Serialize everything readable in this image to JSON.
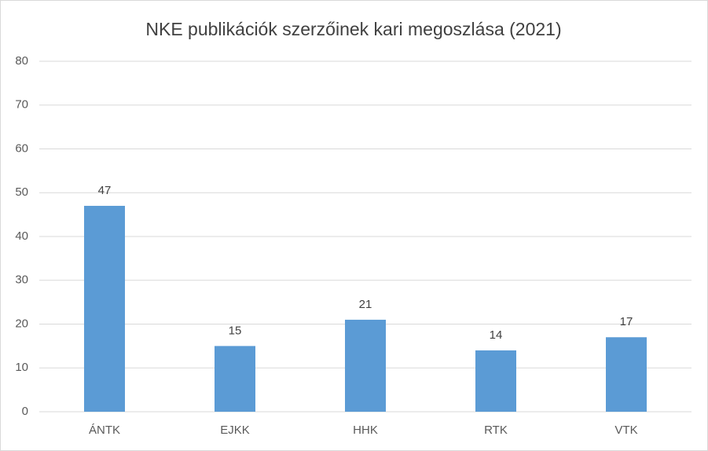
{
  "chart_data": {
    "type": "bar",
    "title": "NKE publikációk szerzőinek kari megoszlása (2021)",
    "categories": [
      "ÁNTK",
      "EJKK",
      "HHK",
      "RTK",
      "VTK"
    ],
    "values": [
      47,
      15,
      21,
      14,
      17
    ],
    "color": "#5b9bd5",
    "ylim": [
      0,
      80
    ],
    "yticks": [
      0,
      10,
      20,
      30,
      40,
      50,
      60,
      70,
      80
    ],
    "grid": true
  }
}
